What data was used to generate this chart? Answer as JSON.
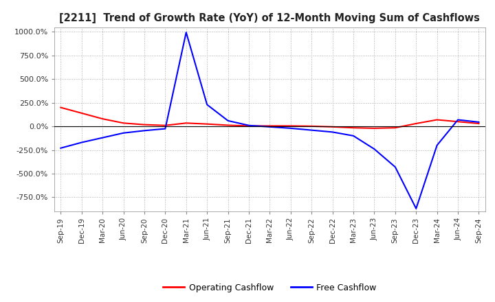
{
  "title": "[2211]  Trend of Growth Rate (YoY) of 12-Month Moving Sum of Cashflows",
  "title_color": "#222222",
  "background_color": "#ffffff",
  "grid_color": "#aaaaaa",
  "ylim": [
    -900,
    1050
  ],
  "yticks": [
    -750,
    -500,
    -250,
    0,
    250,
    500,
    750,
    1000
  ],
  "operating_color": "#ff0000",
  "free_color": "#0000ff",
  "legend_labels": [
    "Operating Cashflow",
    "Free Cashflow"
  ],
  "dates": [
    "Sep-19",
    "Dec-19",
    "Mar-20",
    "Jun-20",
    "Sep-20",
    "Dec-20",
    "Mar-21",
    "Jun-21",
    "Sep-21",
    "Dec-21",
    "Mar-22",
    "Jun-22",
    "Sep-22",
    "Dec-22",
    "Mar-23",
    "Jun-23",
    "Sep-23",
    "Dec-23",
    "Mar-24",
    "Jun-24",
    "Sep-24"
  ],
  "operating_cashflow": [
    200,
    140,
    80,
    35,
    18,
    10,
    35,
    25,
    12,
    5,
    5,
    5,
    2,
    -5,
    -15,
    -20,
    -15,
    30,
    70,
    50,
    30
  ],
  "free_cashflow": [
    -230,
    -170,
    -120,
    -70,
    -45,
    -25,
    995,
    230,
    60,
    10,
    -5,
    -20,
    -40,
    -60,
    -100,
    -240,
    -430,
    -870,
    -200,
    70,
    45
  ]
}
